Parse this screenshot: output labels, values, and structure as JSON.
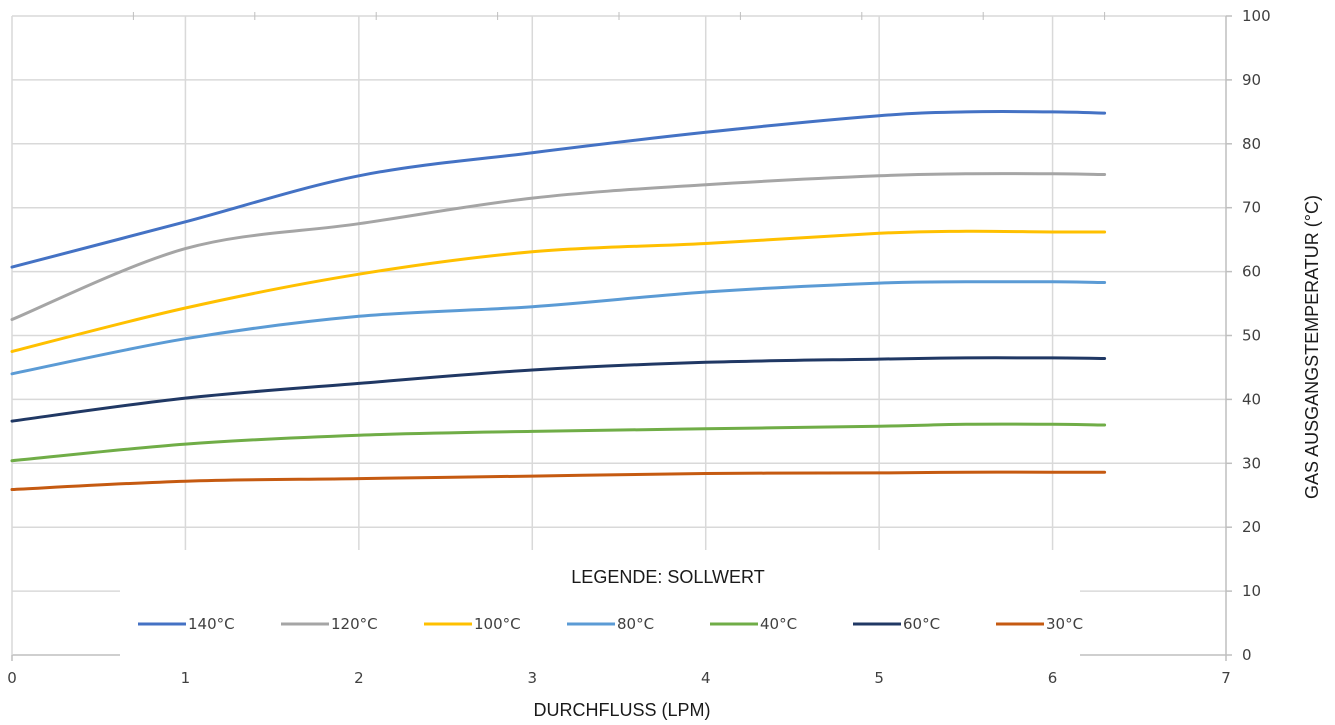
{
  "chart_data": {
    "type": "line",
    "xlabel": "DURCHFLUSS (LPM)",
    "ylabel": "GAS AUSGANGSTEMPERATUR (°C)",
    "legend_title": "LEGENDE: SOLLWERT",
    "legend_position": "bottom-center",
    "xlim": [
      0,
      7
    ],
    "ylim": [
      0,
      100
    ],
    "x_ticks": [
      0,
      1,
      2,
      3,
      4,
      5,
      6,
      7
    ],
    "y_ticks": [
      0,
      10,
      20,
      30,
      40,
      50,
      60,
      70,
      80,
      90,
      100
    ],
    "y_axis_side": "right",
    "grid": true,
    "x": [
      0,
      1,
      2,
      3,
      4,
      5,
      5.5,
      6,
      6.3
    ],
    "series": [
      {
        "name": "140°C",
        "color": "#4472C4",
        "values": [
          60.7,
          67.8,
          75.0,
          78.6,
          81.8,
          84.4,
          85.0,
          85.0,
          84.8
        ]
      },
      {
        "name": "120°C",
        "color": "#A5A5A5",
        "values": [
          52.5,
          63.6,
          67.5,
          71.5,
          73.6,
          75.0,
          75.3,
          75.3,
          75.2
        ]
      },
      {
        "name": "100°C",
        "color": "#FFC000",
        "values": [
          47.5,
          54.3,
          59.6,
          63.1,
          64.4,
          66.0,
          66.3,
          66.2,
          66.2
        ]
      },
      {
        "name": "80°C",
        "color": "#5B9BD5",
        "values": [
          44.0,
          49.5,
          53.0,
          54.5,
          56.8,
          58.2,
          58.4,
          58.4,
          58.3
        ]
      },
      {
        "name": "40°C",
        "color": "#70AD47",
        "values": [
          30.4,
          33.0,
          34.4,
          35.0,
          35.4,
          35.8,
          36.1,
          36.1,
          36.0
        ]
      },
      {
        "name": "60°C",
        "color": "#203864",
        "values": [
          36.6,
          40.2,
          42.5,
          44.6,
          45.8,
          46.3,
          46.5,
          46.5,
          46.4
        ]
      },
      {
        "name": "30°C",
        "color": "#C55A11",
        "values": [
          25.9,
          27.2,
          27.6,
          28.0,
          28.4,
          28.5,
          28.6,
          28.6,
          28.6
        ]
      }
    ]
  }
}
